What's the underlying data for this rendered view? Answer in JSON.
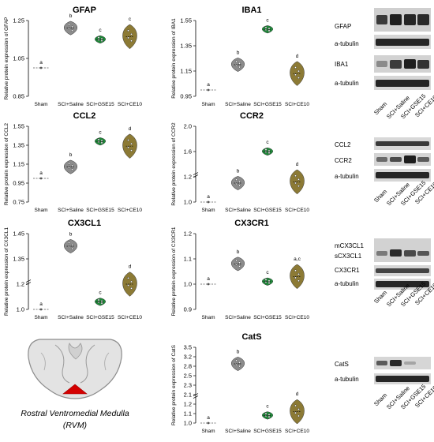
{
  "chart_data": [
    {
      "type": "violin",
      "title": "GFAP",
      "ylabel": "Relative protein expression of GFAP",
      "categories": [
        "Sham",
        "SCI+Saline",
        "SCI+GSE15",
        "SCI+CE10"
      ],
      "yticks": [
        "0.85",
        "1.05",
        "1.25"
      ],
      "ylim": [
        0.85,
        1.27
      ],
      "values": [
        1.0,
        1.21,
        1.15,
        1.165
      ],
      "letters": [
        "a",
        "b",
        "c",
        "c"
      ]
    },
    {
      "type": "violin",
      "title": "IBA1",
      "ylabel": "Relative protein expression of IBA1",
      "categories": [
        "Sham",
        "SCI+Saline",
        "SCI+GSE15",
        "SCI+CE10"
      ],
      "yticks": [
        "0.95",
        "1.15",
        "1.35",
        "1.55"
      ],
      "ylim": [
        0.95,
        1.57
      ],
      "values": [
        1.0,
        1.2,
        1.48,
        1.13
      ],
      "letters": [
        "a",
        "b",
        "c",
        "d"
      ]
    },
    {
      "type": "violin",
      "title": "CCL2",
      "ylabel": "Relative protein expression of CCL2",
      "categories": [
        "Sham",
        "SCI+Saline",
        "SCI+GSE15",
        "SCI+CE10"
      ],
      "yticks": [
        "0.75",
        "0.95",
        "1.15",
        "1.35",
        "1.55"
      ],
      "ylim": [
        0.75,
        1.55
      ],
      "values": [
        1.0,
        1.12,
        1.39,
        1.34
      ],
      "letters": [
        "a",
        "b",
        "c",
        "d"
      ]
    },
    {
      "type": "violin",
      "title": "CCR2",
      "ylabel": "Relative protein expression of CCR2",
      "categories": [
        "Sham",
        "SCI+Saline",
        "SCI+GSE15",
        "SCI+CE10"
      ],
      "yticks": [
        "1.0",
        "1.2",
        "1.6",
        "2.0"
      ],
      "ylim": [
        0.9,
        2.05
      ],
      "axis_break": true,
      "values": [
        1.0,
        1.15,
        1.6,
        1.16
      ],
      "letters": [
        "a",
        "b",
        "c",
        "d"
      ]
    },
    {
      "type": "violin",
      "title": "CX3CL1",
      "ylabel": "Relative protein expression of CX3CL1",
      "categories": [
        "Sham",
        "SCI+Saline",
        "SCI+GSE15",
        "SCI+CE10"
      ],
      "yticks": [
        "1.0",
        "1.2",
        "1.35",
        "1.45"
      ],
      "ylim": [
        0.95,
        1.47
      ],
      "axis_break": true,
      "values": [
        1.0,
        1.4,
        1.06,
        1.2
      ],
      "letters": [
        "a",
        "b",
        "c",
        "d"
      ]
    },
    {
      "type": "violin",
      "title": "CX3CR1",
      "ylabel": "Relative protein expression of CX3CR1",
      "categories": [
        "Sham",
        "SCI+Saline",
        "SCI+GSE15",
        "SCI+CE10"
      ],
      "yticks": [
        "0.9",
        "1.0",
        "1.1",
        "1.2"
      ],
      "ylim": [
        0.9,
        1.2
      ],
      "values": [
        1.0,
        1.08,
        1.01,
        1.03
      ],
      "letters": [
        "a",
        "b",
        "c",
        "a,c"
      ]
    },
    {
      "type": "violin",
      "title": "CatS",
      "ylabel": "Relative protein expression of CatS",
      "categories": [
        "Sham",
        "SCI+Saline",
        "SCI+GSE15",
        "SCI+CE10"
      ],
      "yticks": [
        "1.0",
        "1.1",
        "1.2",
        "2.1",
        "2.3",
        "2.5",
        "2.8",
        "3.2",
        "3.5"
      ],
      "ylim": [
        0.95,
        3.55
      ],
      "axis_break": true,
      "values": [
        1.0,
        2.9,
        1.08,
        1.12
      ],
      "letters": [
        "a",
        "b",
        "c",
        "d"
      ]
    }
  ],
  "blots": {
    "lanes": [
      "Sham",
      "SCI+Saline",
      "SCI+GSE15",
      "SCI+CE10"
    ],
    "panel1": [
      "GFAP",
      "a-tubulin",
      "IBA1",
      "a-tubulin"
    ],
    "panel2": [
      "CCL2",
      "CCR2",
      "a-tubulin"
    ],
    "panel3": [
      "mCX3CL1",
      "sCX3CL1",
      "CX3CR1",
      "a-tubulin"
    ],
    "panel4": [
      "CatS",
      "a-tubulin"
    ]
  },
  "region": {
    "caption_line1": "Rostral Ventromedial Medulla",
    "caption_line2": "(RVM)"
  },
  "colors": {
    "sham": "#7f7f7f",
    "saline": "#8c8c8c",
    "gse15": "#1f8a3a",
    "ce10": "#8c7a35"
  }
}
